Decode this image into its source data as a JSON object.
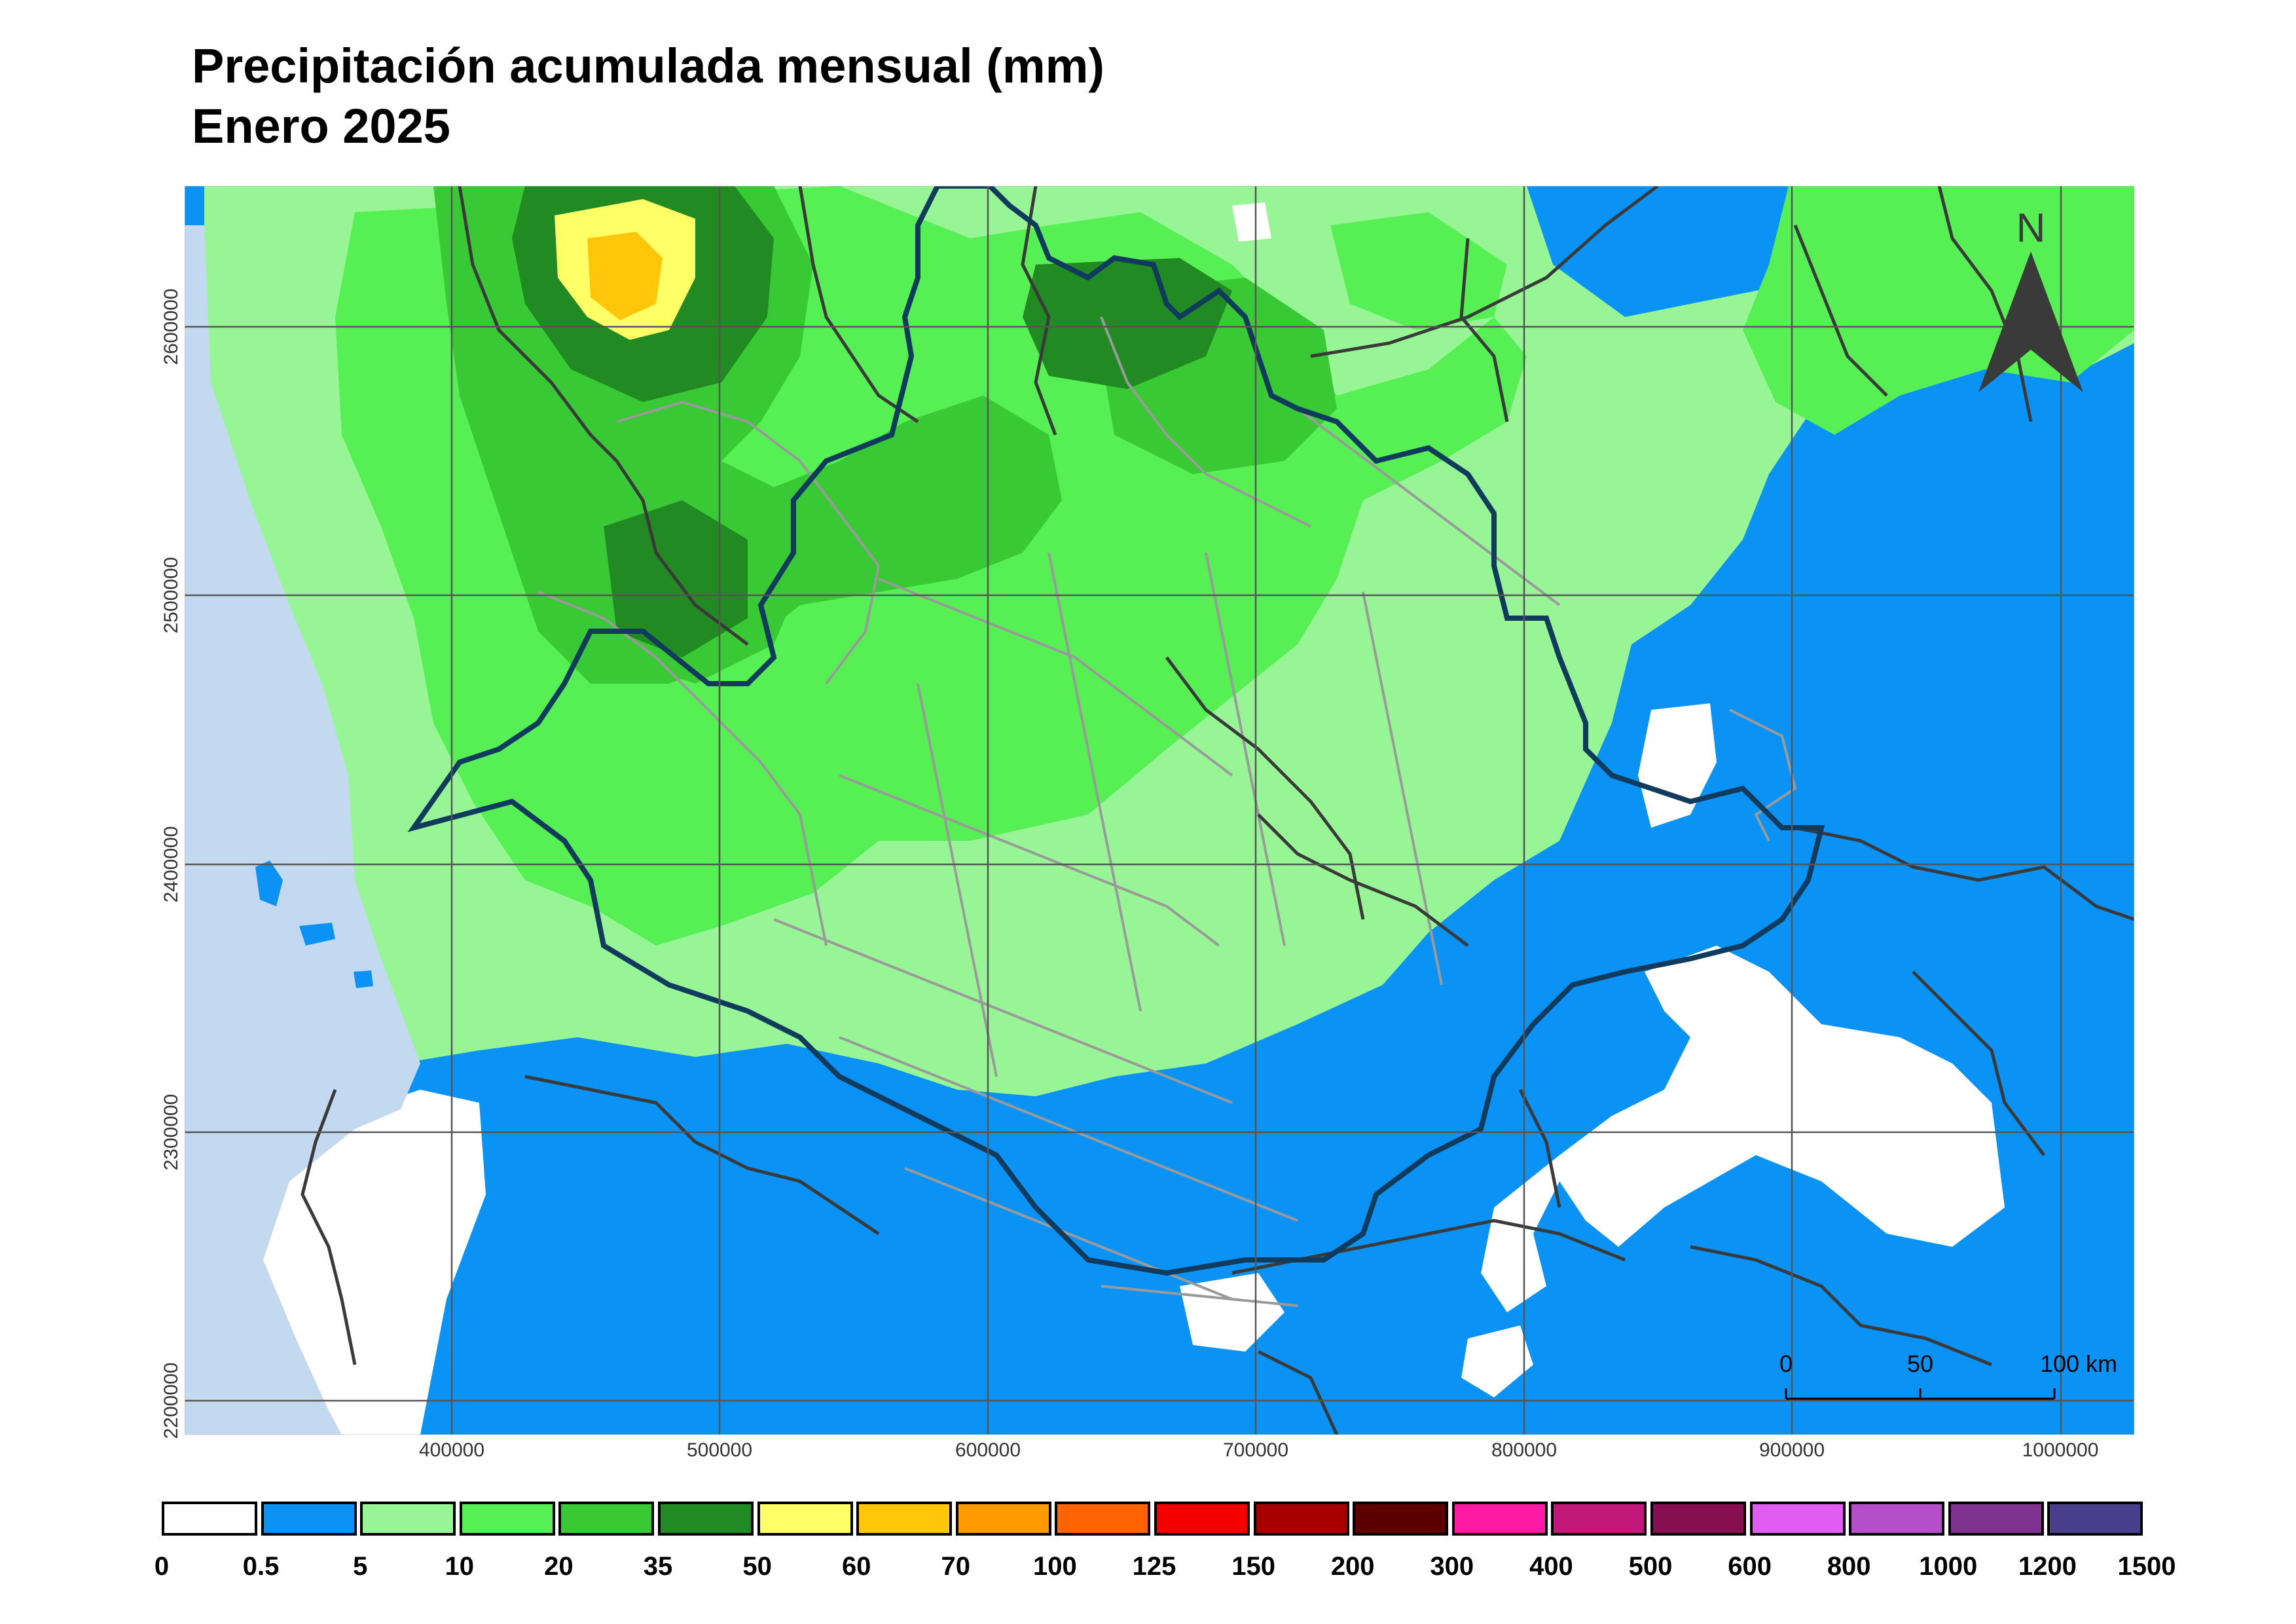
{
  "title": {
    "line1": "Precipitación acumulada mensual (mm)",
    "line2": "Enero 2025"
  },
  "north_label": "N",
  "scale_bar": {
    "labels": [
      "0",
      "50",
      "100 km"
    ]
  },
  "x_ticks": [
    "400000",
    "500000",
    "600000",
    "700000",
    "800000",
    "900000",
    "1000000"
  ],
  "y_ticks": [
    "2600000",
    "2500000",
    "2400000",
    "2300000",
    "2200000"
  ],
  "legend": {
    "breaks": [
      "0",
      "0.5",
      "5",
      "10",
      "20",
      "35",
      "50",
      "60",
      "70",
      "100",
      "125",
      "150",
      "200",
      "300",
      "400",
      "500",
      "600",
      "800",
      "1000",
      "1200",
      "1500"
    ],
    "colors": [
      "#ffffff",
      "#0a93f4",
      "#98f596",
      "#57f054",
      "#38c934",
      "#218a23",
      "#ffff66",
      "#ffc60a",
      "#ff9a00",
      "#ff6400",
      "#f50000",
      "#a80000",
      "#5c0000",
      "#ff1aa3",
      "#c2187a",
      "#880e52",
      "#e25cf2",
      "#b44ec9",
      "#7e3390",
      "#4a3f8a"
    ]
  },
  "map_colors": {
    "ocean": "#c3d9f0",
    "dry_white": "#ffffff",
    "class_0_5_5": "#0a93f4",
    "class_5_10": "#98f596",
    "class_10_20": "#57f054",
    "class_20_35": "#38c934",
    "class_35_50": "#218a23",
    "class_50_60": "#ffff66",
    "class_60_70": "#ffc60a",
    "state_border": "#3a3a3a",
    "municipal_border": "#9a9a9a",
    "study_area_border": "#113b5c",
    "grid": "#555555"
  }
}
